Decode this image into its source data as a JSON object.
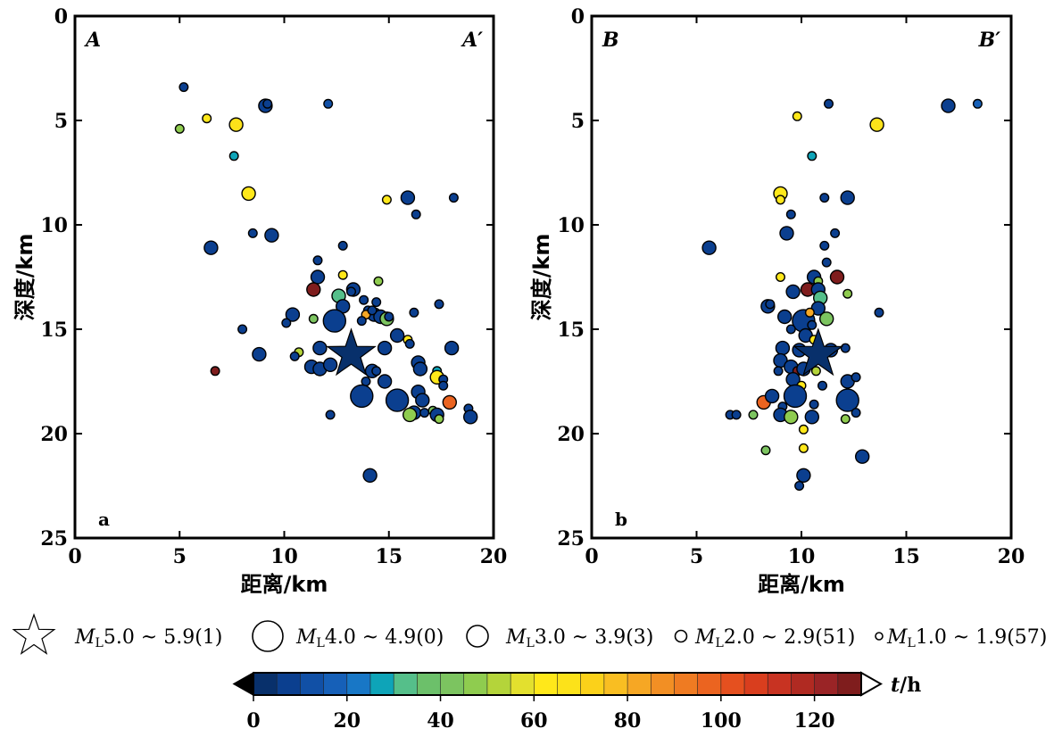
{
  "chart_data": [
    {
      "type": "scatter",
      "panel_label": "a",
      "corner_left": "A",
      "corner_right": "A′",
      "xlabel": "距离/km",
      "ylabel": "深度/km",
      "xlim": [
        0,
        20
      ],
      "ylim": [
        25,
        0
      ],
      "xticks": [
        "0",
        "5",
        "10",
        "15",
        "20"
      ],
      "yticks": [
        "0",
        "5",
        "10",
        "15",
        "20",
        "25"
      ],
      "mainshock": {
        "x": 13.2,
        "y": 16.2,
        "t": 0
      },
      "points": [
        {
          "x": 5.2,
          "y": 3.4,
          "m": 1.5,
          "t": 5
        },
        {
          "x": 9.1,
          "y": 4.3,
          "m": 2.5,
          "t": 5
        },
        {
          "x": 9.2,
          "y": 4.2,
          "m": 1.5,
          "t": 5
        },
        {
          "x": 12.1,
          "y": 4.2,
          "m": 1.5,
          "t": 10
        },
        {
          "x": 5.0,
          "y": 5.4,
          "m": 1.5,
          "t": 45
        },
        {
          "x": 6.3,
          "y": 4.9,
          "m": 1.5,
          "t": 60
        },
        {
          "x": 7.7,
          "y": 5.2,
          "m": 2.5,
          "t": 65
        },
        {
          "x": 7.6,
          "y": 6.7,
          "m": 1.5,
          "t": 25
        },
        {
          "x": 8.3,
          "y": 8.5,
          "m": 2.5,
          "t": 60
        },
        {
          "x": 14.9,
          "y": 8.8,
          "m": 1.5,
          "t": 60
        },
        {
          "x": 15.9,
          "y": 8.7,
          "m": 2.5,
          "t": 5
        },
        {
          "x": 18.1,
          "y": 8.7,
          "m": 1.5,
          "t": 5
        },
        {
          "x": 16.3,
          "y": 9.5,
          "m": 1.5,
          "t": 5
        },
        {
          "x": 6.5,
          "y": 11.1,
          "m": 2.5,
          "t": 5
        },
        {
          "x": 8.5,
          "y": 10.4,
          "m": 1.5,
          "t": 5
        },
        {
          "x": 9.4,
          "y": 10.5,
          "m": 2.5,
          "t": 5
        },
        {
          "x": 12.8,
          "y": 11.0,
          "m": 1.5,
          "t": 5
        },
        {
          "x": 11.6,
          "y": 11.7,
          "m": 1.5,
          "t": 5
        },
        {
          "x": 11.6,
          "y": 12.5,
          "m": 2.5,
          "t": 5
        },
        {
          "x": 12.8,
          "y": 12.4,
          "m": 1.5,
          "t": 60
        },
        {
          "x": 14.5,
          "y": 12.7,
          "m": 1.5,
          "t": 45
        },
        {
          "x": 11.4,
          "y": 13.1,
          "m": 2.5,
          "t": 125
        },
        {
          "x": 12.6,
          "y": 13.4,
          "m": 2.5,
          "t": 30
        },
        {
          "x": 13.3,
          "y": 13.1,
          "m": 2.5,
          "t": 5
        },
        {
          "x": 13.2,
          "y": 13.2,
          "m": 1.5,
          "t": 5
        },
        {
          "x": 12.8,
          "y": 13.9,
          "m": 2.5,
          "t": 5
        },
        {
          "x": 12.4,
          "y": 14.6,
          "m": 3.5,
          "t": 5
        },
        {
          "x": 11.4,
          "y": 14.5,
          "m": 1.5,
          "t": 40
        },
        {
          "x": 10.4,
          "y": 14.3,
          "m": 2.5,
          "t": 5
        },
        {
          "x": 10.1,
          "y": 14.7,
          "m": 1.5,
          "t": 5
        },
        {
          "x": 14.0,
          "y": 14.1,
          "m": 1.5,
          "t": 5
        },
        {
          "x": 14.3,
          "y": 14.3,
          "m": 2.5,
          "t": 5
        },
        {
          "x": 13.9,
          "y": 14.3,
          "m": 1.5,
          "t": 80
        },
        {
          "x": 14.6,
          "y": 14.4,
          "m": 2.5,
          "t": 5
        },
        {
          "x": 14.9,
          "y": 14.5,
          "m": 2.5,
          "t": 40
        },
        {
          "x": 15.0,
          "y": 14.4,
          "m": 1.5,
          "t": 5
        },
        {
          "x": 14.2,
          "y": 14.1,
          "m": 1.5,
          "t": 5
        },
        {
          "x": 13.7,
          "y": 14.6,
          "m": 1.5,
          "t": 5
        },
        {
          "x": 13.8,
          "y": 13.6,
          "m": 1.5,
          "t": 5
        },
        {
          "x": 14.4,
          "y": 13.7,
          "m": 1.5,
          "t": 5
        },
        {
          "x": 16.2,
          "y": 14.2,
          "m": 1.5,
          "t": 5
        },
        {
          "x": 17.4,
          "y": 13.8,
          "m": 1.5,
          "t": 5
        },
        {
          "x": 8.0,
          "y": 15.0,
          "m": 1.5,
          "t": 5
        },
        {
          "x": 8.8,
          "y": 16.2,
          "m": 2.5,
          "t": 5
        },
        {
          "x": 6.7,
          "y": 17.0,
          "m": 1.5,
          "t": 125
        },
        {
          "x": 11.7,
          "y": 15.9,
          "m": 2.5,
          "t": 5
        },
        {
          "x": 10.7,
          "y": 16.1,
          "m": 1.5,
          "t": 50
        },
        {
          "x": 10.5,
          "y": 16.3,
          "m": 1.5,
          "t": 5
        },
        {
          "x": 11.3,
          "y": 16.8,
          "m": 2.5,
          "t": 5
        },
        {
          "x": 11.7,
          "y": 16.9,
          "m": 2.5,
          "t": 5
        },
        {
          "x": 12.2,
          "y": 16.7,
          "m": 2.5,
          "t": 5
        },
        {
          "x": 14.8,
          "y": 15.9,
          "m": 2.5,
          "t": 5
        },
        {
          "x": 15.4,
          "y": 15.3,
          "m": 2.5,
          "t": 5
        },
        {
          "x": 15.9,
          "y": 15.5,
          "m": 1.5,
          "t": 60
        },
        {
          "x": 16.0,
          "y": 15.7,
          "m": 1.5,
          "t": 5
        },
        {
          "x": 16.4,
          "y": 16.6,
          "m": 2.5,
          "t": 5
        },
        {
          "x": 16.5,
          "y": 16.9,
          "m": 2.5,
          "t": 5
        },
        {
          "x": 18.0,
          "y": 15.9,
          "m": 2.5,
          "t": 5
        },
        {
          "x": 14.2,
          "y": 17.0,
          "m": 2.5,
          "t": 5
        },
        {
          "x": 14.4,
          "y": 17.0,
          "m": 1.5,
          "t": 5
        },
        {
          "x": 13.9,
          "y": 17.5,
          "m": 1.5,
          "t": 5
        },
        {
          "x": 14.8,
          "y": 17.5,
          "m": 2.5,
          "t": 5
        },
        {
          "x": 17.3,
          "y": 17.0,
          "m": 1.5,
          "t": 25
        },
        {
          "x": 17.3,
          "y": 17.3,
          "m": 2.5,
          "t": 60
        },
        {
          "x": 17.6,
          "y": 17.4,
          "m": 1.5,
          "t": 5
        },
        {
          "x": 17.6,
          "y": 17.7,
          "m": 1.5,
          "t": 5
        },
        {
          "x": 13.7,
          "y": 18.2,
          "m": 3.5,
          "t": 5
        },
        {
          "x": 15.4,
          "y": 18.4,
          "m": 3.5,
          "t": 5
        },
        {
          "x": 16.4,
          "y": 18.0,
          "m": 2.5,
          "t": 5
        },
        {
          "x": 16.6,
          "y": 18.4,
          "m": 2.5,
          "t": 5
        },
        {
          "x": 17.9,
          "y": 18.5,
          "m": 2.5,
          "t": 95
        },
        {
          "x": 16.2,
          "y": 19.0,
          "m": 2.5,
          "t": 5
        },
        {
          "x": 16.0,
          "y": 19.1,
          "m": 2.5,
          "t": 45
        },
        {
          "x": 16.7,
          "y": 19.0,
          "m": 1.5,
          "t": 5
        },
        {
          "x": 17.1,
          "y": 18.9,
          "m": 1.5,
          "t": 40
        },
        {
          "x": 17.3,
          "y": 19.1,
          "m": 2.5,
          "t": 5
        },
        {
          "x": 17.4,
          "y": 19.3,
          "m": 1.5,
          "t": 45
        },
        {
          "x": 18.8,
          "y": 18.8,
          "m": 1.5,
          "t": 5
        },
        {
          "x": 18.9,
          "y": 19.2,
          "m": 2.5,
          "t": 5
        },
        {
          "x": 12.2,
          "y": 19.1,
          "m": 1.5,
          "t": 5
        },
        {
          "x": 14.1,
          "y": 22.0,
          "m": 2.5,
          "t": 5
        }
      ]
    },
    {
      "type": "scatter",
      "panel_label": "b",
      "corner_left": "B",
      "corner_right": "B′",
      "xlabel": "距离/km",
      "ylabel": "深度/km",
      "xlim": [
        0,
        20
      ],
      "ylim": [
        25,
        0
      ],
      "xticks": [
        "0",
        "5",
        "10",
        "15",
        "20"
      ],
      "yticks": [
        "0",
        "5",
        "10",
        "15",
        "20",
        "25"
      ],
      "mainshock": {
        "x": 10.8,
        "y": 16.2,
        "t": 0
      },
      "points": [
        {
          "x": 11.3,
          "y": 4.2,
          "m": 1.5,
          "t": 5
        },
        {
          "x": 9.8,
          "y": 4.8,
          "m": 1.5,
          "t": 60
        },
        {
          "x": 13.6,
          "y": 5.2,
          "m": 2.5,
          "t": 65
        },
        {
          "x": 17.0,
          "y": 4.3,
          "m": 2.5,
          "t": 5
        },
        {
          "x": 18.4,
          "y": 4.2,
          "m": 1.5,
          "t": 15
        },
        {
          "x": 10.5,
          "y": 6.7,
          "m": 1.5,
          "t": 25
        },
        {
          "x": 9.0,
          "y": 8.5,
          "m": 2.5,
          "t": 60
        },
        {
          "x": 9.0,
          "y": 8.8,
          "m": 1.5,
          "t": 60
        },
        {
          "x": 11.1,
          "y": 8.7,
          "m": 1.5,
          "t": 5
        },
        {
          "x": 12.2,
          "y": 8.7,
          "m": 2.5,
          "t": 5
        },
        {
          "x": 9.5,
          "y": 9.5,
          "m": 1.5,
          "t": 5
        },
        {
          "x": 5.6,
          "y": 11.1,
          "m": 2.5,
          "t": 5
        },
        {
          "x": 9.3,
          "y": 10.4,
          "m": 2.5,
          "t": 5
        },
        {
          "x": 11.6,
          "y": 10.4,
          "m": 1.5,
          "t": 5
        },
        {
          "x": 11.1,
          "y": 11.0,
          "m": 1.5,
          "t": 5
        },
        {
          "x": 11.2,
          "y": 11.8,
          "m": 1.5,
          "t": 5
        },
        {
          "x": 9.0,
          "y": 12.5,
          "m": 1.5,
          "t": 60
        },
        {
          "x": 10.6,
          "y": 12.5,
          "m": 2.5,
          "t": 5
        },
        {
          "x": 11.7,
          "y": 12.5,
          "m": 2.5,
          "t": 125
        },
        {
          "x": 10.8,
          "y": 12.7,
          "m": 1.5,
          "t": 45
        },
        {
          "x": 10.3,
          "y": 13.1,
          "m": 2.5,
          "t": 125
        },
        {
          "x": 10.8,
          "y": 13.1,
          "m": 2.5,
          "t": 5
        },
        {
          "x": 9.6,
          "y": 13.2,
          "m": 2.5,
          "t": 5
        },
        {
          "x": 10.9,
          "y": 13.5,
          "m": 2.5,
          "t": 30
        },
        {
          "x": 12.2,
          "y": 13.3,
          "m": 1.5,
          "t": 45
        },
        {
          "x": 8.4,
          "y": 13.9,
          "m": 2.5,
          "t": 5
        },
        {
          "x": 8.5,
          "y": 13.8,
          "m": 1.5,
          "t": 5
        },
        {
          "x": 10.1,
          "y": 14.6,
          "m": 3.5,
          "t": 5
        },
        {
          "x": 9.2,
          "y": 14.4,
          "m": 2.5,
          "t": 5
        },
        {
          "x": 10.8,
          "y": 14.0,
          "m": 2.5,
          "t": 5
        },
        {
          "x": 11.2,
          "y": 14.5,
          "m": 2.5,
          "t": 40
        },
        {
          "x": 10.5,
          "y": 14.8,
          "m": 1.5,
          "t": 5
        },
        {
          "x": 10.4,
          "y": 14.2,
          "m": 1.5,
          "t": 80
        },
        {
          "x": 13.7,
          "y": 14.2,
          "m": 1.5,
          "t": 5
        },
        {
          "x": 9.5,
          "y": 15.0,
          "m": 1.5,
          "t": 5
        },
        {
          "x": 10.2,
          "y": 15.3,
          "m": 2.5,
          "t": 5
        },
        {
          "x": 9.1,
          "y": 15.9,
          "m": 2.5,
          "t": 5
        },
        {
          "x": 9.9,
          "y": 16.0,
          "m": 2.5,
          "t": 5
        },
        {
          "x": 10.6,
          "y": 15.5,
          "m": 1.5,
          "t": 60
        },
        {
          "x": 11.4,
          "y": 16.0,
          "m": 2.5,
          "t": 5
        },
        {
          "x": 12.1,
          "y": 15.9,
          "m": 1.5,
          "t": 5
        },
        {
          "x": 9.0,
          "y": 16.5,
          "m": 2.5,
          "t": 5
        },
        {
          "x": 9.5,
          "y": 16.8,
          "m": 2.5,
          "t": 5
        },
        {
          "x": 9.8,
          "y": 17.0,
          "m": 1.5,
          "t": 125
        },
        {
          "x": 8.9,
          "y": 17.0,
          "m": 1.5,
          "t": 5
        },
        {
          "x": 10.1,
          "y": 16.9,
          "m": 2.5,
          "t": 5
        },
        {
          "x": 10.7,
          "y": 17.0,
          "m": 1.5,
          "t": 50
        },
        {
          "x": 9.6,
          "y": 17.4,
          "m": 2.5,
          "t": 5
        },
        {
          "x": 12.2,
          "y": 17.5,
          "m": 2.5,
          "t": 5
        },
        {
          "x": 12.6,
          "y": 17.3,
          "m": 1.5,
          "t": 5
        },
        {
          "x": 10.0,
          "y": 17.7,
          "m": 1.5,
          "t": 60
        },
        {
          "x": 11.0,
          "y": 17.7,
          "m": 1.5,
          "t": 5
        },
        {
          "x": 8.2,
          "y": 18.5,
          "m": 2.5,
          "t": 95
        },
        {
          "x": 8.6,
          "y": 18.2,
          "m": 2.5,
          "t": 5
        },
        {
          "x": 9.7,
          "y": 18.2,
          "m": 3.5,
          "t": 5
        },
        {
          "x": 12.2,
          "y": 18.4,
          "m": 3.5,
          "t": 5
        },
        {
          "x": 9.1,
          "y": 18.7,
          "m": 1.5,
          "t": 5
        },
        {
          "x": 10.6,
          "y": 18.6,
          "m": 1.5,
          "t": 5
        },
        {
          "x": 9.0,
          "y": 19.1,
          "m": 2.5,
          "t": 5
        },
        {
          "x": 9.5,
          "y": 19.2,
          "m": 2.5,
          "t": 45
        },
        {
          "x": 10.5,
          "y": 19.2,
          "m": 2.5,
          "t": 5
        },
        {
          "x": 12.1,
          "y": 19.3,
          "m": 1.5,
          "t": 45
        },
        {
          "x": 12.6,
          "y": 19.0,
          "m": 1.5,
          "t": 5
        },
        {
          "x": 6.6,
          "y": 19.1,
          "m": 1.5,
          "t": 5
        },
        {
          "x": 6.9,
          "y": 19.1,
          "m": 1.5,
          "t": 5
        },
        {
          "x": 7.7,
          "y": 19.1,
          "m": 1.5,
          "t": 40
        },
        {
          "x": 10.1,
          "y": 19.8,
          "m": 1.5,
          "t": 60
        },
        {
          "x": 10.1,
          "y": 20.7,
          "m": 1.5,
          "t": 60
        },
        {
          "x": 8.3,
          "y": 20.8,
          "m": 1.5,
          "t": 40
        },
        {
          "x": 12.9,
          "y": 21.1,
          "m": 2.5,
          "t": 5
        },
        {
          "x": 10.1,
          "y": 22.0,
          "m": 2.5,
          "t": 5
        },
        {
          "x": 9.9,
          "y": 22.5,
          "m": 1.5,
          "t": 5
        }
      ]
    }
  ],
  "legend": {
    "items": [
      {
        "symbol": "star",
        "sub": "L",
        "text": "5.0 ~ 5.9(1)"
      },
      {
        "symbol": "circle-4",
        "sub": "L",
        "text": "4.0 ~ 4.9(0)"
      },
      {
        "symbol": "circle-3",
        "sub": "L",
        "text": "3.0 ~ 3.9(3)"
      },
      {
        "symbol": "circle-2",
        "sub": "L",
        "text": "2.0 ~ 2.9(51)"
      },
      {
        "symbol": "circle-1",
        "sub": "L",
        "text": "1.0 ~ 1.9(57)"
      }
    ],
    "magnitude_symbol": "M"
  },
  "colorbar": {
    "label_var": "t",
    "label_unit": "/h",
    "range": [
      0,
      130
    ],
    "step": 5,
    "ticks": [
      "0",
      "20",
      "40",
      "60",
      "80",
      "100",
      "120"
    ],
    "tick_values": [
      0,
      20,
      40,
      60,
      80,
      100,
      120
    ],
    "colors": [
      "#08306b",
      "#0b3f8f",
      "#1150a6",
      "#1660b8",
      "#1877c6",
      "#0ea4b8",
      "#55bf8a",
      "#6cc06a",
      "#7cc460",
      "#8fcc4f",
      "#b4d43a",
      "#e3e02e",
      "#ffe81a",
      "#fce21a",
      "#fbd11a",
      "#f9be22",
      "#f6a724",
      "#f28f24",
      "#ef7b22",
      "#eb6420",
      "#e5501f",
      "#d93e1e",
      "#c83322",
      "#b02a22",
      "#9a2426",
      "#7f1d1d"
    ]
  }
}
